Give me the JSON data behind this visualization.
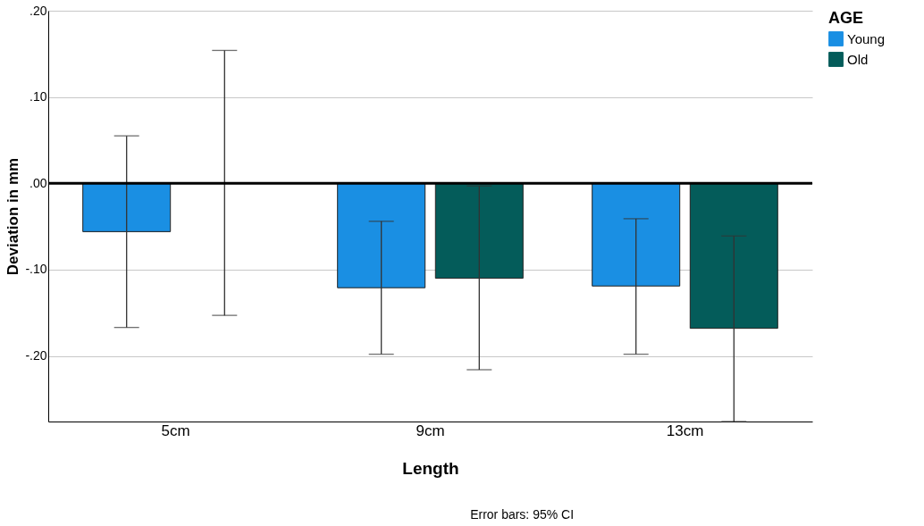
{
  "chart_data": {
    "type": "bar",
    "xlabel": "Length",
    "ylabel": "Deviation in mm",
    "legend_title": "AGE",
    "categories": [
      "5cm",
      "9cm",
      "13cm"
    ],
    "series": [
      {
        "name": "Young",
        "color": "#1a8fe3",
        "values": [
          -0.056,
          -0.121,
          -0.119
        ],
        "errors": [
          [
            -0.167,
            0.055
          ],
          [
            -0.198,
            -0.044
          ],
          [
            -0.198,
            -0.041
          ]
        ]
      },
      {
        "name": "Old",
        "color": "#045c5a",
        "values": [
          0.0,
          -0.11,
          -0.168
        ],
        "errors": [
          [
            -0.153,
            0.154
          ],
          [
            -0.216,
            -0.003
          ],
          [
            -0.276,
            -0.061
          ]
        ]
      }
    ],
    "ylim": [
      -0.276,
      0.2
    ],
    "yticks": [
      {
        "value": -0.2,
        "label": "-.20"
      },
      {
        "value": -0.1,
        "label": "-.10"
      },
      {
        "value": 0,
        "label": ".00"
      },
      {
        "value": 0.1,
        "label": ".10"
      },
      {
        "value": 0.2,
        "label": ".20"
      }
    ],
    "grid": "y",
    "legend": "top right",
    "ref_lines": [
      {
        "axis": "y",
        "value": 0,
        "color": "#000000"
      }
    ],
    "annotations": [
      "Error bars: 95% CI"
    ]
  }
}
